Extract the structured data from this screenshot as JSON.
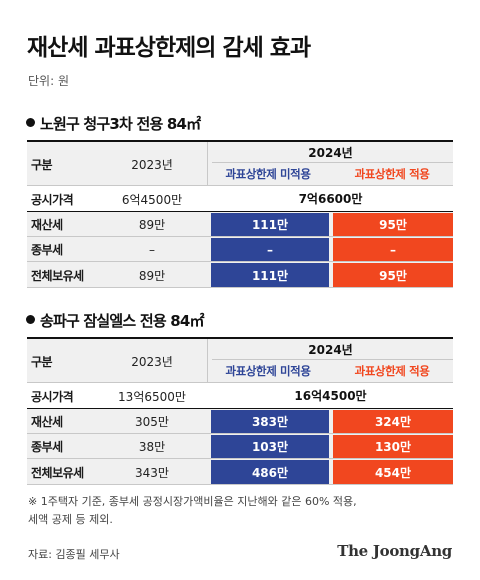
{
  "title": "재산세 과표상한제의 감세 효과",
  "unit": "단위: 원",
  "chart_data": {
    "type": "table",
    "tables": [
      {
        "name": "노원구 청구3차 전용 84㎡",
        "header": {
          "col_label": "구분",
          "col_2023": "2023년",
          "col_2024": "2024년",
          "sub_blue": "과표상한제 미적용",
          "sub_red": "과표상한제 적용"
        },
        "price": {
          "label": "공시가격",
          "v2023": "6억4500만",
          "v2024": "7억6600만"
        },
        "rows": [
          {
            "label": "재산세",
            "v2023": "89만",
            "blue": "111만",
            "red": "95만"
          },
          {
            "label": "종부세",
            "v2023": "–",
            "blue": "–",
            "red": "–"
          },
          {
            "label": "전체보유세",
            "v2023": "89만",
            "blue": "111만",
            "red": "95만"
          }
        ]
      },
      {
        "name": "송파구 잠실엘스 전용 84㎡",
        "header": {
          "col_label": "구분",
          "col_2023": "2023년",
          "col_2024": "2024년",
          "sub_blue": "과표상한제 미적용",
          "sub_red": "과표상한제 적용"
        },
        "price": {
          "label": "공시가격",
          "v2023": "13억6500만",
          "v2024": "16억4500만"
        },
        "rows": [
          {
            "label": "재산세",
            "v2023": "305만",
            "blue": "383만",
            "red": "324만"
          },
          {
            "label": "종부세",
            "v2023": "38만",
            "blue": "103만",
            "red": "130만"
          },
          {
            "label": "전체보유세",
            "v2023": "343만",
            "blue": "486만",
            "red": "454만"
          }
        ]
      }
    ]
  },
  "colors": {
    "blue": "#2e4597",
    "red": "#f1471f",
    "shade": "#f0f0f0"
  },
  "note": "※ 1주택자 기준, 종부세 공정시장가액비율은 지난해와 같은 60% 적용,\n   세액 공제 등 제외.",
  "source": "자료: 김종필 세무사",
  "logo": "The JoongAng"
}
